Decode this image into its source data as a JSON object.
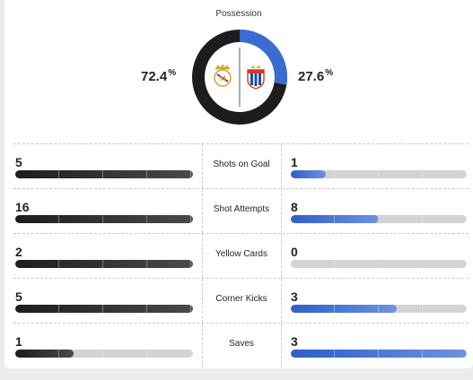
{
  "possession": {
    "title": "Possession",
    "home_value": "72.4",
    "away_value": "27.6",
    "unit": "%",
    "home_fraction": 0.724,
    "away_fraction": 0.276,
    "home_color": "#1d1d1f",
    "away_color": "#3a6bd1",
    "home_crest_icon": "real-madrid-crest-icon",
    "away_crest_icon": "espanyol-crest-icon"
  },
  "stats": [
    {
      "label": "Shots on Goal",
      "home": "5",
      "away": "1",
      "home_fill": 1.0,
      "away_fill": 0.2
    },
    {
      "label": "Shot Attempts",
      "home": "16",
      "away": "8",
      "home_fill": 1.0,
      "away_fill": 0.5
    },
    {
      "label": "Yellow Cards",
      "home": "2",
      "away": "0",
      "home_fill": 1.0,
      "away_fill": 0.0
    },
    {
      "label": "Corner Kicks",
      "home": "5",
      "away": "3",
      "home_fill": 1.0,
      "away_fill": 0.6
    },
    {
      "label": "Saves",
      "home": "1",
      "away": "3",
      "home_fill": 0.33,
      "away_fill": 1.0
    }
  ]
}
